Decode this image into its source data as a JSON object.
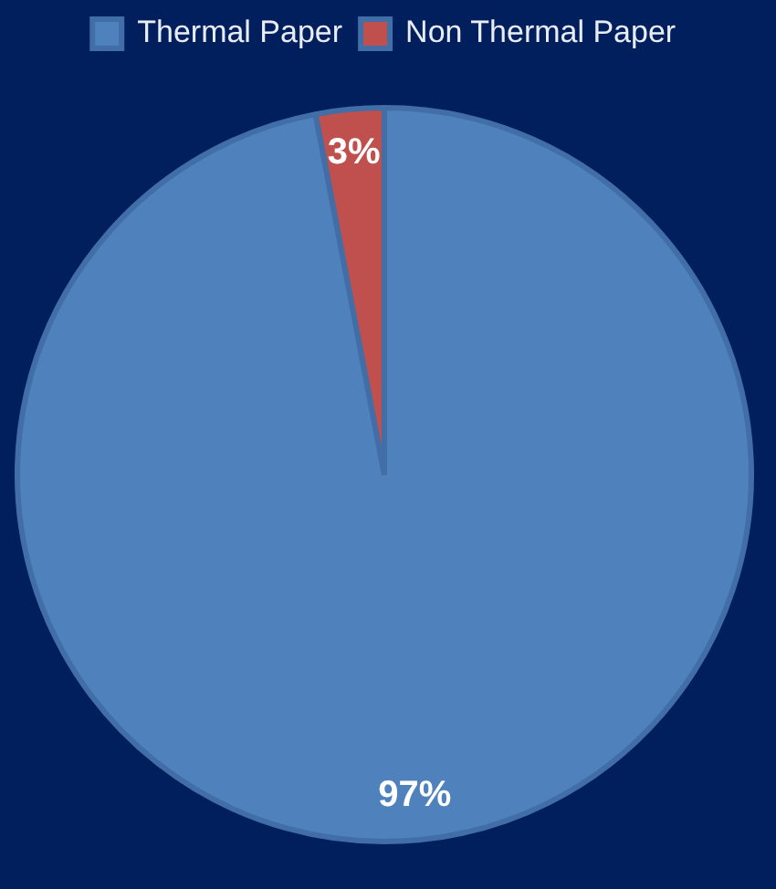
{
  "chart_data": {
    "type": "pie",
    "categories": [
      "Thermal Paper",
      "Non Thermal Paper"
    ],
    "values": [
      97,
      3
    ],
    "colors": [
      "#4f81bd",
      "#c0504d"
    ],
    "value_labels": [
      "97%",
      "3%"
    ],
    "legend": "top"
  }
}
